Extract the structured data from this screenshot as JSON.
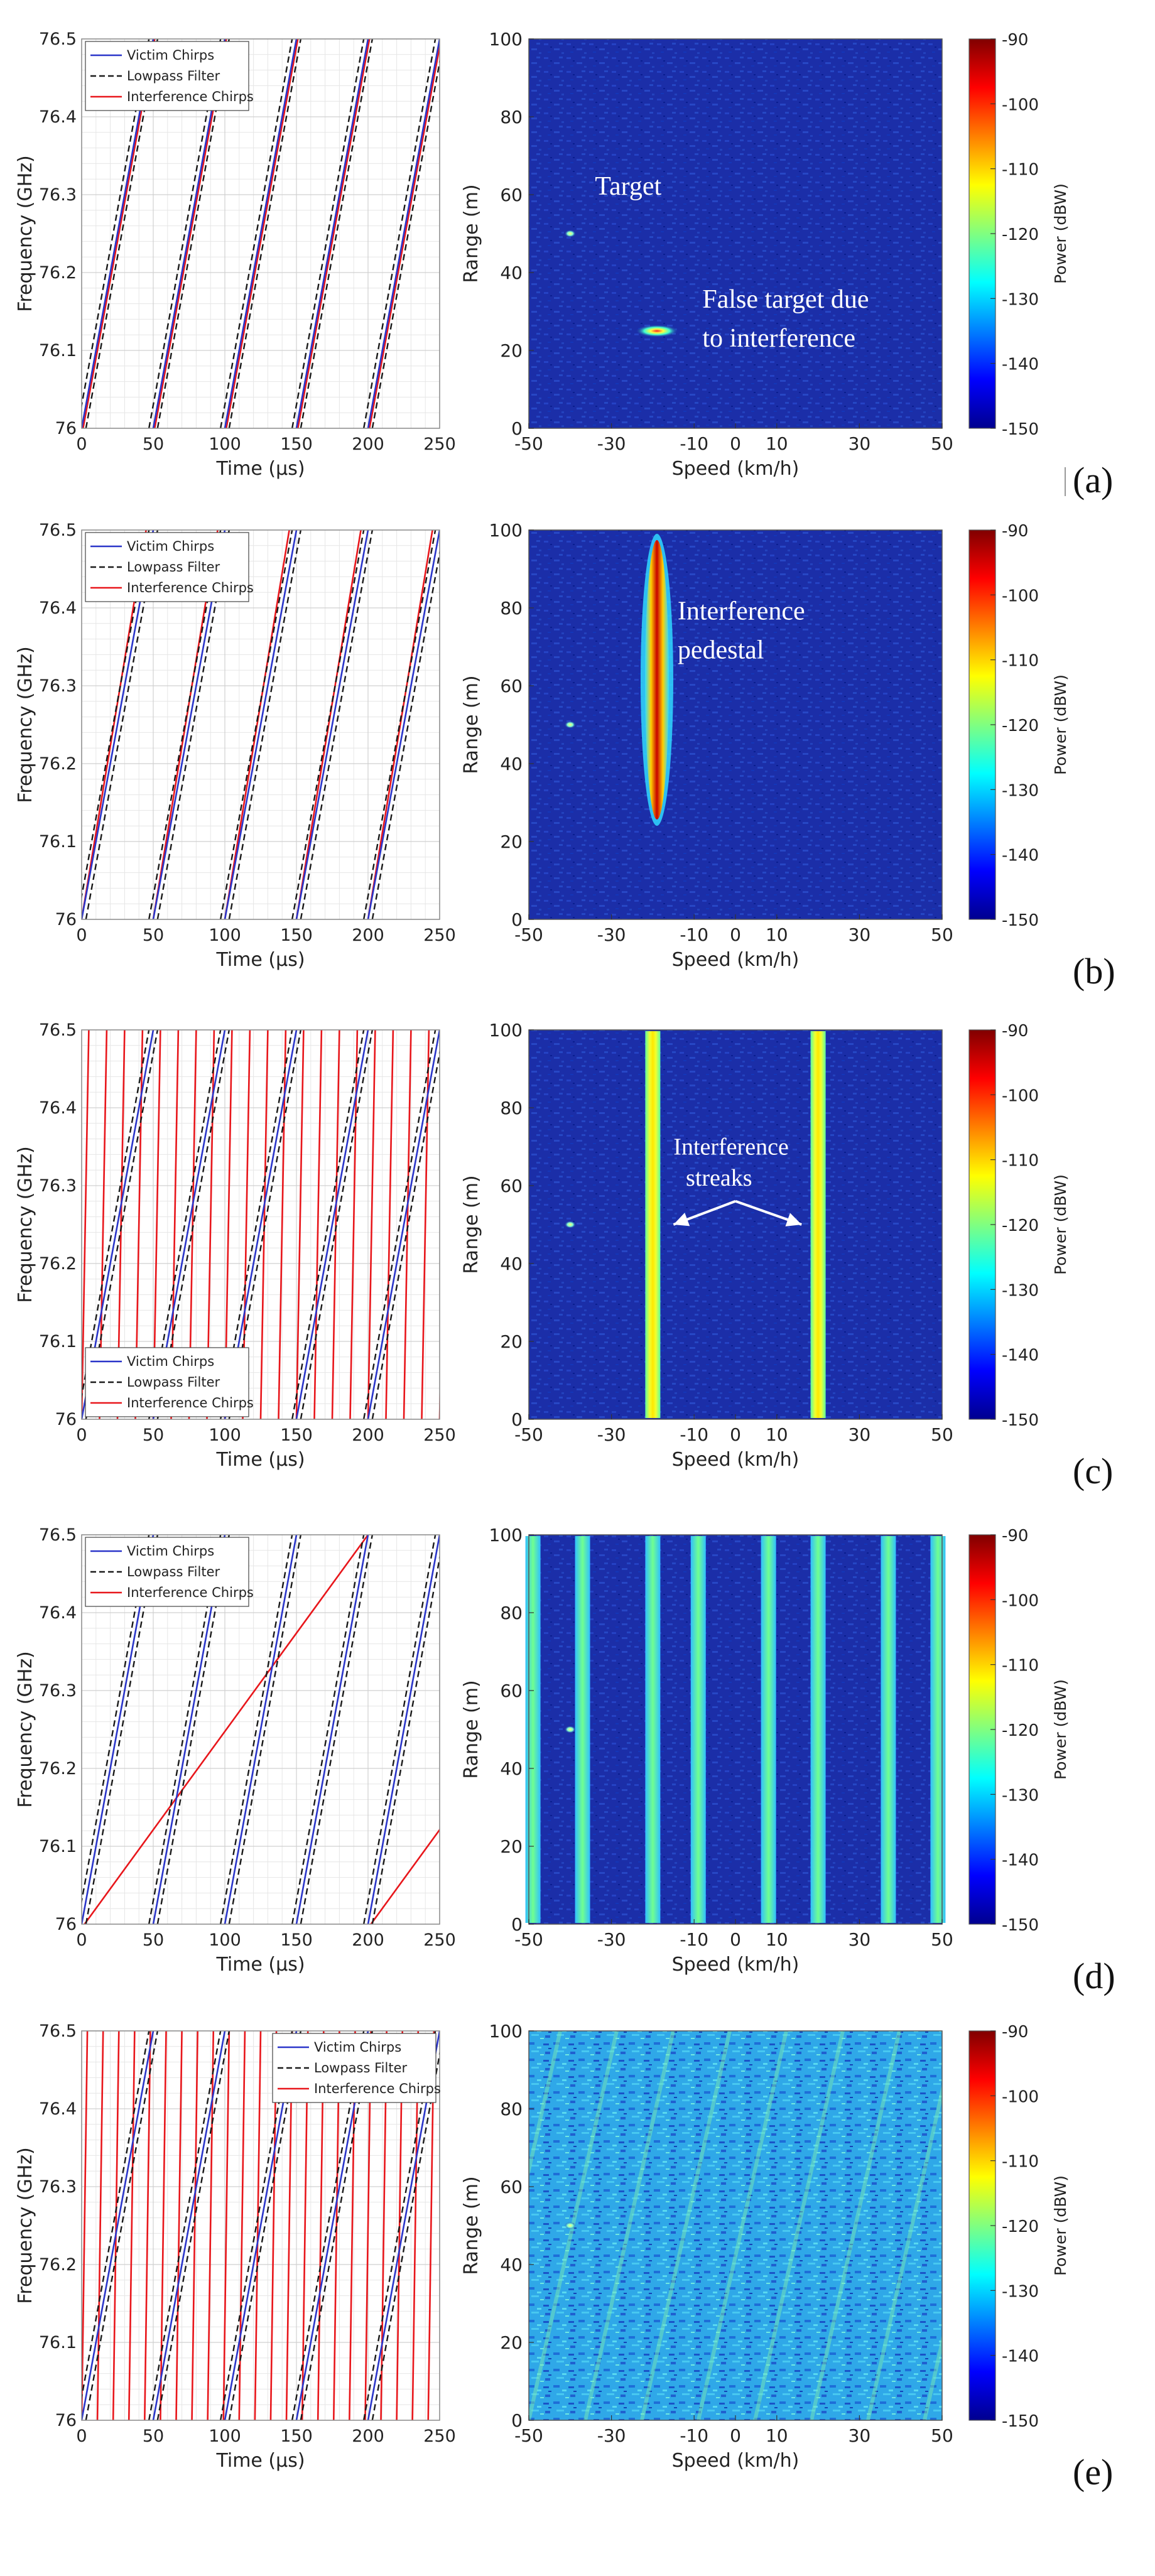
{
  "colors": {
    "victim": "#2a35c9",
    "lowpass": "#1a1a1a",
    "interference": "#e8161b",
    "map_bg": "#1b2ea8"
  },
  "labels": {
    "colorbar": "Power (dBW)",
    "colorbar_ticks": [
      "-90",
      "-100",
      "-110",
      "-120",
      "-130",
      "-140",
      "-150"
    ]
  },
  "chart_data": [
    {
      "id": "a",
      "sublabel": "(a)",
      "chirp": {
        "type": "line",
        "xlabel": "Time (μs)",
        "ylabel": "Frequency (GHz)",
        "xlim": [
          0,
          250
        ],
        "ylim": [
          76,
          76.5
        ],
        "xticks": [
          "0",
          "50",
          "100",
          "150",
          "200",
          "250"
        ],
        "yticks": [
          "76",
          "76.1",
          "76.2",
          "76.3",
          "76.4",
          "76.5"
        ],
        "legend": [
          "Victim Chirps",
          "Lowpass Filter",
          "Interference Chirps"
        ],
        "legend_position": "top-left",
        "victim_starts_us": [
          0,
          50,
          100,
          150,
          200
        ],
        "victim_duration_us": 50,
        "interference_starts_us": [
          1,
          51,
          101,
          151,
          201
        ],
        "interference_duration_us": 50
      },
      "map": {
        "type": "heatmap",
        "xlabel": "Speed (km/h)",
        "ylabel": "Range (m)",
        "xlim": [
          -50,
          50
        ],
        "ylim": [
          0,
          100
        ],
        "xticks": [
          "-50",
          "-30",
          "-10",
          "0",
          "10",
          "30",
          "50"
        ],
        "yticks": [
          "0",
          "20",
          "40",
          "60",
          "80",
          "100"
        ],
        "clim": [
          -150,
          -90
        ],
        "target": {
          "speed": -40,
          "range": 50
        },
        "false_target": {
          "speed": -19,
          "range": 25
        },
        "annotations": [
          "Target",
          "False target due",
          "to interference"
        ]
      }
    },
    {
      "id": "b",
      "sublabel": "(b)",
      "chirp": {
        "type": "line",
        "xlabel": "Time (μs)",
        "ylabel": "Frequency (GHz)",
        "xlim": [
          0,
          250
        ],
        "ylim": [
          76,
          76.5
        ],
        "xticks": [
          "0",
          "50",
          "100",
          "150",
          "200",
          "250"
        ],
        "yticks": [
          "76",
          "76.1",
          "76.2",
          "76.3",
          "76.4",
          "76.5"
        ],
        "legend": [
          "Victim Chirps",
          "Lowpass Filter",
          "Interference Chirps"
        ],
        "legend_position": "top-left",
        "victim_starts_us": [
          0,
          50,
          100,
          150,
          200
        ],
        "victim_duration_us": 50,
        "interference_starts_us": [
          0,
          50,
          100,
          150,
          200
        ],
        "interference_duration_us": 45
      },
      "map": {
        "type": "heatmap",
        "xlabel": "Speed (km/h)",
        "ylabel": "Range (m)",
        "xlim": [
          -50,
          50
        ],
        "ylim": [
          0,
          100
        ],
        "xticks": [
          "-50",
          "-30",
          "-10",
          "0",
          "10",
          "30",
          "50"
        ],
        "yticks": [
          "0",
          "20",
          "40",
          "60",
          "80",
          "100"
        ],
        "clim": [
          -150,
          -90
        ],
        "target": {
          "speed": -40,
          "range": 50
        },
        "pedestal": {
          "speed": -19,
          "range_min": 25,
          "range_max": 100
        },
        "annotations": [
          "Interference",
          "pedestal"
        ]
      }
    },
    {
      "id": "c",
      "sublabel": "(c)",
      "chirp": {
        "type": "line",
        "xlabel": "Time (μs)",
        "ylabel": "Frequency (GHz)",
        "xlim": [
          0,
          250
        ],
        "ylim": [
          76,
          76.5
        ],
        "xticks": [
          "0",
          "50",
          "100",
          "150",
          "200",
          "250"
        ],
        "yticks": [
          "76",
          "76.1",
          "76.2",
          "76.3",
          "76.4",
          "76.5"
        ],
        "legend": [
          "Victim Chirps",
          "Lowpass Filter",
          "Interference Chirps"
        ],
        "legend_position": "bottom-left",
        "victim_starts_us": [
          0,
          50,
          100,
          150,
          200
        ],
        "victim_duration_us": 50,
        "interference_starts_us": [
          0,
          12.5,
          25,
          37.5,
          50,
          62.5,
          75,
          87.5,
          100,
          112.5,
          125,
          137.5,
          150,
          162.5,
          175,
          187.5,
          200,
          212.5,
          225,
          237.5,
          250
        ],
        "interference_duration_us": 5
      },
      "map": {
        "type": "heatmap",
        "xlabel": "Speed (km/h)",
        "ylabel": "Range (m)",
        "xlim": [
          -50,
          50
        ],
        "ylim": [
          0,
          100
        ],
        "xticks": [
          "-50",
          "-30",
          "-10",
          "0",
          "10",
          "30",
          "50"
        ],
        "yticks": [
          "0",
          "20",
          "40",
          "60",
          "80",
          "100"
        ],
        "clim": [
          -150,
          -90
        ],
        "target": {
          "speed": -40,
          "range": 50
        },
        "streaks_speed": [
          -20,
          20
        ],
        "annotations": [
          "Interference",
          "streaks"
        ]
      }
    },
    {
      "id": "d",
      "sublabel": "(d)",
      "chirp": {
        "type": "line",
        "xlabel": "Time (μs)",
        "ylabel": "Frequency (GHz)",
        "xlim": [
          0,
          250
        ],
        "ylim": [
          76,
          76.5
        ],
        "xticks": [
          "0",
          "50",
          "100",
          "150",
          "200",
          "250"
        ],
        "yticks": [
          "76",
          "76.1",
          "76.2",
          "76.3",
          "76.4",
          "76.5"
        ],
        "legend": [
          "Victim Chirps",
          "Lowpass Filter",
          "Interference Chirps"
        ],
        "legend_position": "top-left",
        "victim_starts_us": [
          0,
          50,
          100,
          150,
          200
        ],
        "victim_duration_us": 50,
        "interference_starts_us": [
          2,
          202
        ],
        "interference_duration_us": 198
      },
      "map": {
        "type": "heatmap",
        "xlabel": "Speed (km/h)",
        "ylabel": "Range (m)",
        "xlim": [
          -50,
          50
        ],
        "ylim": [
          0,
          100
        ],
        "xticks": [
          "-50",
          "-30",
          "-10",
          "0",
          "10",
          "30",
          "50"
        ],
        "yticks": [
          "0",
          "20",
          "40",
          "60",
          "80",
          "100"
        ],
        "clim": [
          -150,
          -90
        ],
        "target": {
          "speed": -40,
          "range": 50
        },
        "streaks_speed": [
          -49,
          -37,
          -20,
          -9,
          8,
          20,
          37,
          49
        ],
        "annotations": []
      }
    },
    {
      "id": "e",
      "sublabel": "(e)",
      "chirp": {
        "type": "line",
        "xlabel": "Time (μs)",
        "ylabel": "Frequency (GHz)",
        "xlim": [
          0,
          250
        ],
        "ylim": [
          76,
          76.5
        ],
        "xticks": [
          "0",
          "50",
          "100",
          "150",
          "200",
          "250"
        ],
        "yticks": [
          "76",
          "76.1",
          "76.2",
          "76.3",
          "76.4",
          "76.5"
        ],
        "legend": [
          "Victim Chirps",
          "Lowpass Filter",
          "Interference Chirps"
        ],
        "legend_position": "top-right",
        "victim_starts_us": [
          0,
          50,
          100,
          150,
          200
        ],
        "victim_duration_us": 50,
        "interference_starts_us": [
          0,
          11,
          22,
          33,
          44,
          55,
          66,
          77,
          88,
          99,
          110,
          121,
          132,
          143,
          154,
          165,
          176,
          187,
          198,
          209,
          220,
          231,
          242
        ],
        "interference_duration_us": 4
      },
      "map": {
        "type": "heatmap",
        "xlabel": "Speed (km/h)",
        "ylabel": "Range (m)",
        "xlim": [
          -50,
          50
        ],
        "ylim": [
          0,
          100
        ],
        "xticks": [
          "-50",
          "-30",
          "-10",
          "0",
          "10",
          "30",
          "50"
        ],
        "yticks": [
          "0",
          "20",
          "40",
          "60",
          "80",
          "100"
        ],
        "clim": [
          -150,
          -90
        ],
        "target": {
          "speed": -40,
          "range": 50
        },
        "noise_floor": "high",
        "annotations": []
      }
    }
  ]
}
